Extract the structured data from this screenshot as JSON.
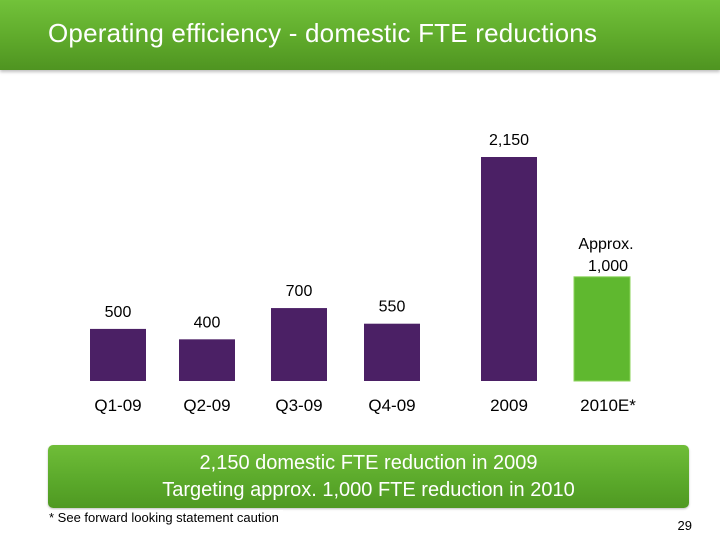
{
  "slide": {
    "title": "Operating efficiency - domestic FTE reductions",
    "summary_line1": "2,150 domestic FTE reduction in 2009",
    "summary_line2": "Targeting approx. 1,000 FTE reduction in 2010",
    "footnote": "* See forward looking statement caution",
    "page_number": "29"
  },
  "colors": {
    "header_green": "#5faa2b",
    "bar_purple": "#4b2065",
    "bar_green": "#5fb82f"
  },
  "chart_data": {
    "type": "bar",
    "title": "",
    "xlabel": "",
    "ylabel": "",
    "ylim": [
      0,
      2150
    ],
    "grid": false,
    "categories": [
      "Q1-09",
      "Q2-09",
      "Q3-09",
      "Q4-09",
      "2009",
      "2010E*"
    ],
    "values": [
      500,
      400,
      700,
      550,
      2150,
      1000
    ],
    "data_labels": [
      "500",
      "400",
      "700",
      "550",
      "2,150",
      "Approx. 1,000"
    ],
    "bar_colors": [
      "#4b2065",
      "#4b2065",
      "#4b2065",
      "#4b2065",
      "#4b2065",
      "#5fb82f"
    ]
  }
}
